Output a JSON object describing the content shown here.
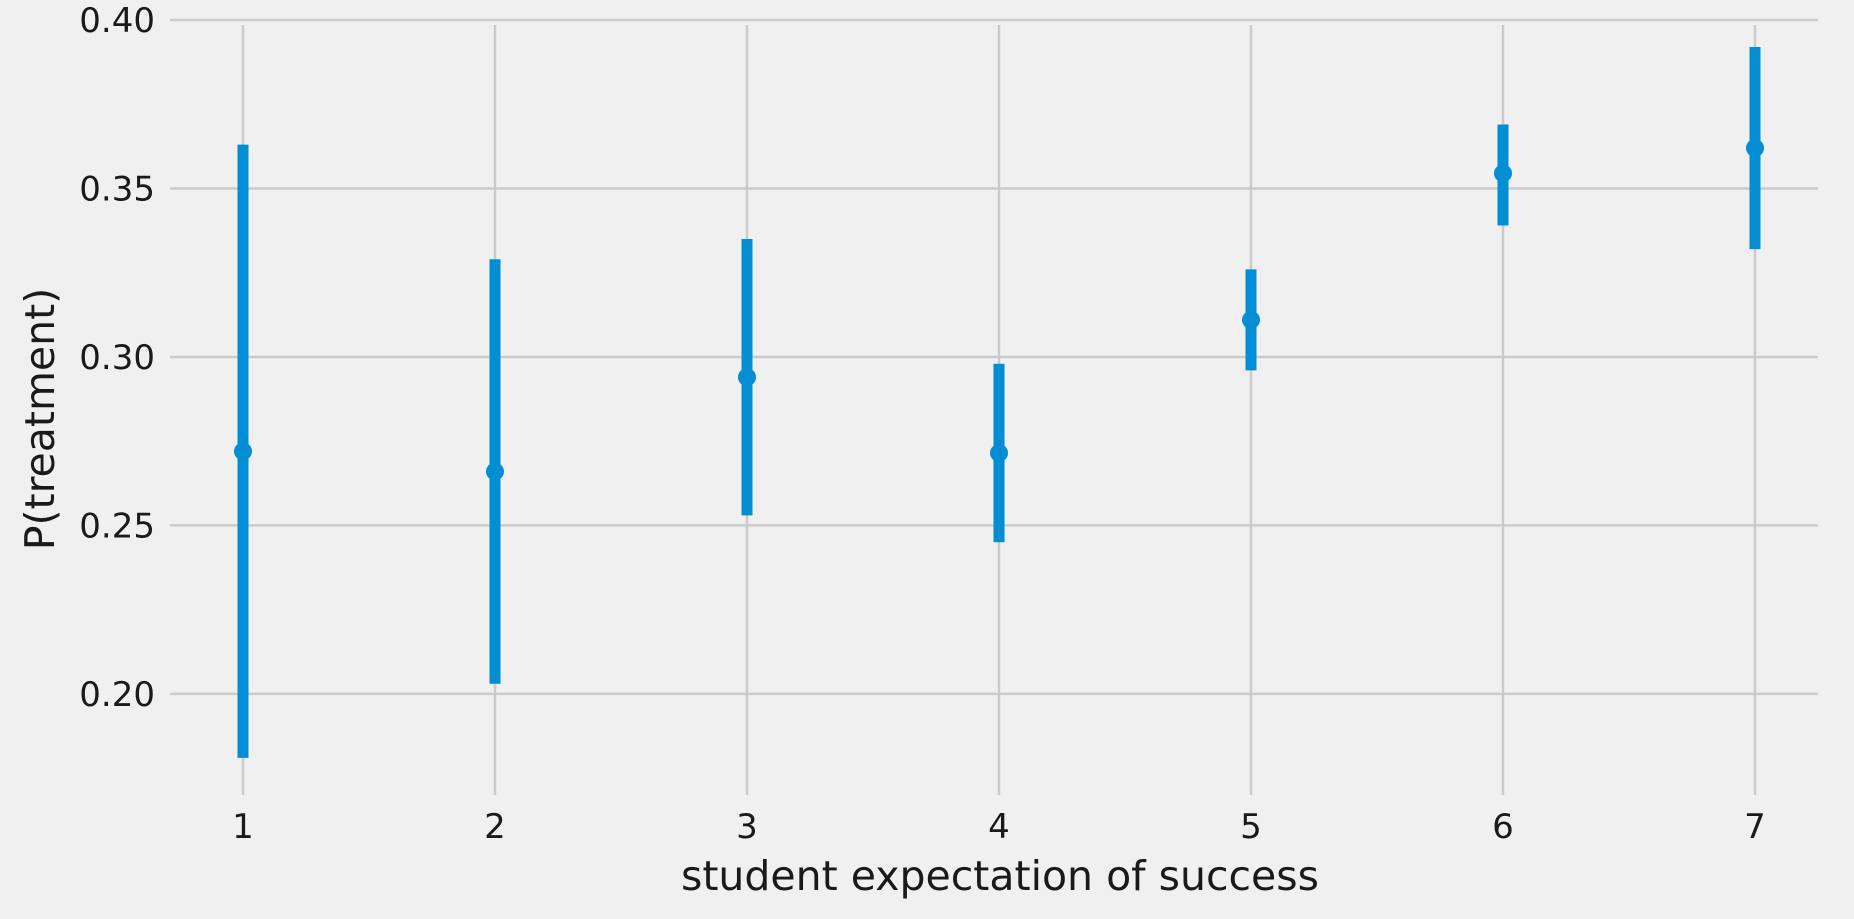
{
  "chart_data": {
    "type": "scatter",
    "style": "point estimate with error bars",
    "xlabel": "student expectation of success",
    "ylabel": "P(treatment)",
    "xlim": [
      0.75,
      7.25
    ],
    "ylim": [
      0.17,
      0.4
    ],
    "x_ticks": [
      1,
      2,
      3,
      4,
      5,
      6,
      7
    ],
    "x_tick_labels": [
      "1",
      "2",
      "3",
      "4",
      "5",
      "6",
      "7"
    ],
    "y_ticks": [
      0.2,
      0.25,
      0.3,
      0.35,
      0.4
    ],
    "y_tick_labels": [
      "0.20",
      "0.25",
      "0.30",
      "0.35",
      "0.40"
    ],
    "grid": true,
    "color": "#008fd5",
    "background": "#f0f0f0",
    "points": [
      {
        "x": 1,
        "y": 0.272,
        "lower": 0.181,
        "upper": 0.363
      },
      {
        "x": 2,
        "y": 0.266,
        "lower": 0.203,
        "upper": 0.329
      },
      {
        "x": 3,
        "y": 0.294,
        "lower": 0.253,
        "upper": 0.335
      },
      {
        "x": 4,
        "y": 0.2715,
        "lower": 0.245,
        "upper": 0.298
      },
      {
        "x": 5,
        "y": 0.311,
        "lower": 0.296,
        "upper": 0.326
      },
      {
        "x": 6,
        "y": 0.3545,
        "lower": 0.339,
        "upper": 0.369
      },
      {
        "x": 7,
        "y": 0.362,
        "lower": 0.332,
        "upper": 0.392
      }
    ]
  }
}
